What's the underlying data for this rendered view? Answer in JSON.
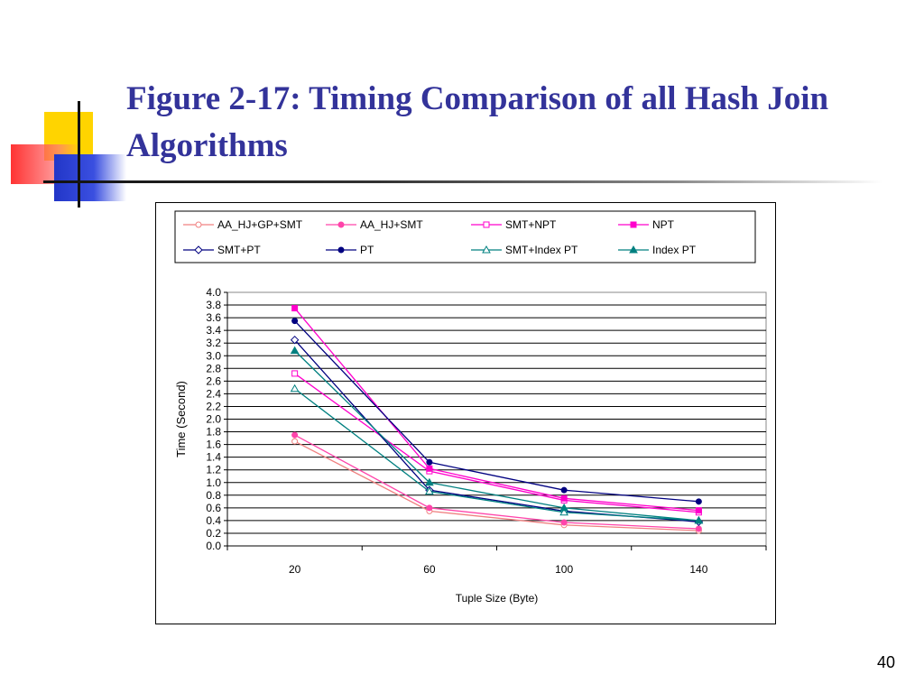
{
  "slide": {
    "title": "Figure 2-17: Timing Comparison of all Hash Join Algorithms",
    "page_number": "40"
  },
  "chart_data": {
    "type": "line",
    "title": "",
    "xlabel": "Tuple Size (Byte)",
    "ylabel": "Time (Second)",
    "categories": [
      "20",
      "60",
      "100",
      "140"
    ],
    "ylim": [
      0,
      4.0
    ],
    "ytick_step": 0.2,
    "grid": true,
    "legend_position": "top",
    "series": [
      {
        "name": "AA_HJ+GP+SMT",
        "values": [
          1.65,
          0.55,
          0.33,
          0.24
        ],
        "color": "#f08080",
        "marker": "circle-open"
      },
      {
        "name": "AA_HJ+SMT",
        "values": [
          1.75,
          0.6,
          0.37,
          0.27
        ],
        "color": "#ff44aa",
        "marker": "circle-filled"
      },
      {
        "name": "SMT+NPT",
        "values": [
          2.72,
          1.18,
          0.72,
          0.53
        ],
        "color": "#ff00cc",
        "marker": "square-open"
      },
      {
        "name": "NPT",
        "values": [
          3.75,
          1.22,
          0.75,
          0.56
        ],
        "color": "#ff00cc",
        "marker": "square-filled"
      },
      {
        "name": "SMT+PT",
        "values": [
          3.25,
          0.88,
          0.55,
          0.38
        ],
        "color": "#000080",
        "marker": "diamond-open"
      },
      {
        "name": "PT",
        "values": [
          3.55,
          1.32,
          0.88,
          0.7
        ],
        "color": "#000080",
        "marker": "circle-filled"
      },
      {
        "name": "SMT+Index PT",
        "values": [
          2.48,
          0.86,
          0.53,
          0.4
        ],
        "color": "#008080",
        "marker": "triangle-open"
      },
      {
        "name": "Index PT",
        "values": [
          3.08,
          1.0,
          0.6,
          0.4
        ],
        "color": "#008080",
        "marker": "triangle-filled"
      }
    ]
  }
}
